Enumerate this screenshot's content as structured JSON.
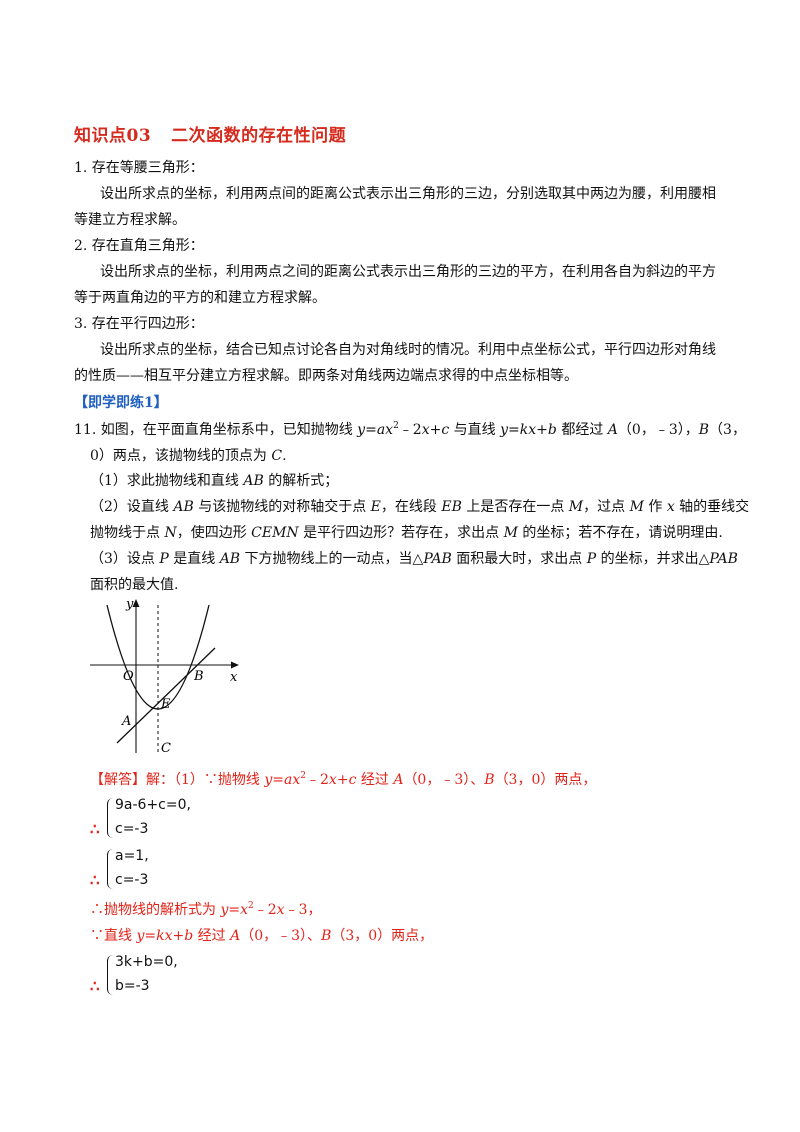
{
  "heading": {
    "label": "知识点03",
    "text": "二次函数的存在性问题"
  },
  "items": [
    {
      "title": "1. 存在等腰三角形：",
      "body1": "设出所求点的坐标，利用两点间的距离公式表示出三角形的三边，分别选取其中两边为腰，利用腰相",
      "body2": "等建立方程求解。"
    },
    {
      "title": "2. 存在直角三角形：",
      "body1": "设出所求点的坐标，利用两点之间的距离公式表示出三角形的三边的平方，在利用各自为斜边的平方",
      "body2": "等于两直角边的平方的和建立方程求解。"
    },
    {
      "title": "3. 存在平行四边形：",
      "body1": "设出所求点的坐标，结合已知点讨论各自为对角线时的情况。利用中点坐标公式，平行四边形对角线",
      "body2": "的性质——相互平分建立方程求解。即两条对角线两边端点求得的中点坐标相等。"
    }
  ],
  "practice_label": "【即学即练1】",
  "problem": {
    "number": "11.",
    "l1a": "如图，在平面直角坐标系中，已知抛物线 ",
    "l1b": " 与直线 ",
    "l1c": " 都经过 ",
    "l1d": "（0，﹣3），",
    "l1e": "（3，",
    "l2a": "0）两点，该抛物线的顶点为 ",
    "l2b": ".",
    "q1a": "（1）求此抛物线和直线 ",
    "q1b": " 的解析式；",
    "q2a": "（2）设直线 ",
    "q2b": " 与该抛物线的对称轴交于点 ",
    "q2c": "，在线段 ",
    "q2d": " 上是否存在一点 ",
    "q2e": "，过点 ",
    "q2f": " 作 ",
    "q2g": " 轴的垂线交",
    "q2h": "抛物线于点 ",
    "q2i": "，使四边形 ",
    "q2j": " 是平行四边形？若存在，求出点 ",
    "q2k": " 的坐标；若不存在，请说明理由.",
    "q3a": "（3）设点 ",
    "q3b": " 是直线 ",
    "q3c": " 下方抛物线上的一动点，当△",
    "q3d": " 面积最大时，求出点 ",
    "q3e": " 的坐标，并求出△",
    "q3f": "面积的最大值."
  },
  "graph_labels": {
    "y": "y",
    "x": "x",
    "O": "O",
    "B": "B",
    "E": "E",
    "A": "A",
    "C": "C"
  },
  "solution": {
    "tag": "【解答】",
    "s1a": "解：（1）∵抛物线 ",
    "s1b": " 经过 ",
    "s1c": "（0，﹣3）、",
    "s1d": "（3，0）两点，",
    "sys1": [
      "9a-6+c=0,",
      "c=-3"
    ],
    "sys2": [
      "a=1,",
      "c=-3"
    ],
    "s2a": "∴抛物线的解析式为 ",
    "s3a": "∵直线 ",
    "s3b": " 经过 ",
    "s3c": "（0，﹣3）、",
    "s3d": "（3，0）两点，",
    "sys3": [
      "3k+b=0,",
      "b=-3"
    ],
    "therefore": "∴"
  }
}
